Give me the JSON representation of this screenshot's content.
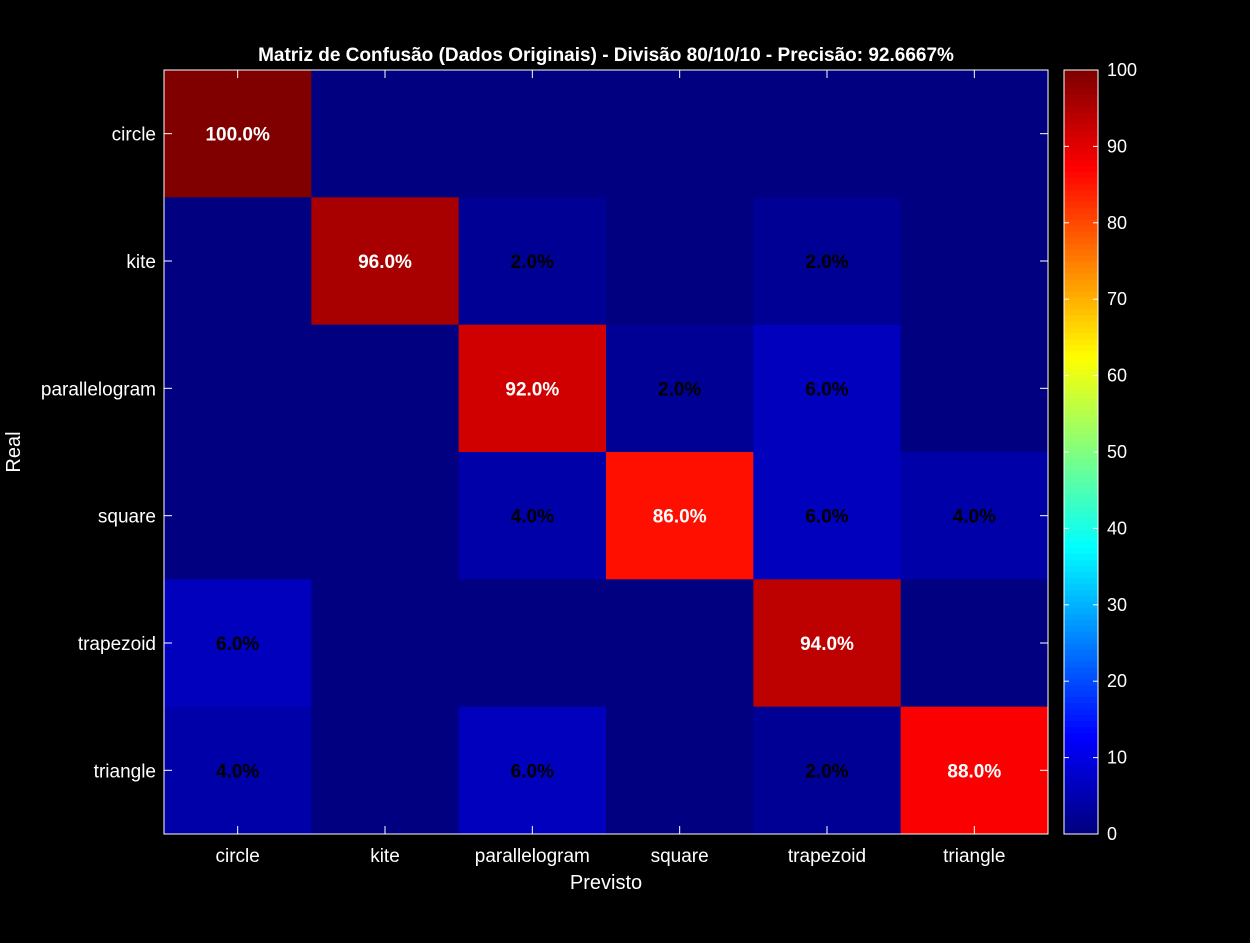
{
  "chart_data": {
    "type": "heatmap",
    "title": "Matriz de Confusão (Dados Originais) - Divisão 80/10/10 - Precisão: 92.6667%",
    "xlabel": "Previsto",
    "ylabel": "Real",
    "x_categories": [
      "circle",
      "kite",
      "parallelogram",
      "square",
      "trapezoid",
      "triangle"
    ],
    "y_categories": [
      "circle",
      "kite",
      "parallelogram",
      "square",
      "trapezoid",
      "triangle"
    ],
    "values": [
      [
        100,
        0,
        0,
        0,
        0,
        0
      ],
      [
        0,
        96,
        2,
        0,
        2,
        0
      ],
      [
        0,
        0,
        92,
        2,
        6,
        0
      ],
      [
        0,
        0,
        4,
        86,
        6,
        4
      ],
      [
        6,
        0,
        0,
        0,
        94,
        0
      ],
      [
        4,
        0,
        6,
        0,
        2,
        88
      ]
    ],
    "cell_labels": [
      [
        "100.0%",
        "",
        "",
        "",
        "",
        ""
      ],
      [
        "",
        "96.0%",
        "2.0%",
        "",
        "2.0%",
        ""
      ],
      [
        "",
        "",
        "92.0%",
        "2.0%",
        "6.0%",
        ""
      ],
      [
        "",
        "",
        "4.0%",
        "86.0%",
        "6.0%",
        "4.0%"
      ],
      [
        "6.0%",
        "",
        "",
        "",
        "94.0%",
        ""
      ],
      [
        "4.0%",
        "",
        "6.0%",
        "",
        "2.0%",
        "88.0%"
      ]
    ],
    "colormap": "jet",
    "clim": [
      0,
      100
    ],
    "colorbar_ticks": [
      "0",
      "10",
      "20",
      "30",
      "40",
      "50",
      "60",
      "70",
      "80",
      "90",
      "100"
    ],
    "colorbar_position": "right",
    "grid": false,
    "colors": {
      "background": "#000000",
      "foreground": "#ffffff",
      "label_high": "#ffffff",
      "label_low": "#000000"
    }
  }
}
